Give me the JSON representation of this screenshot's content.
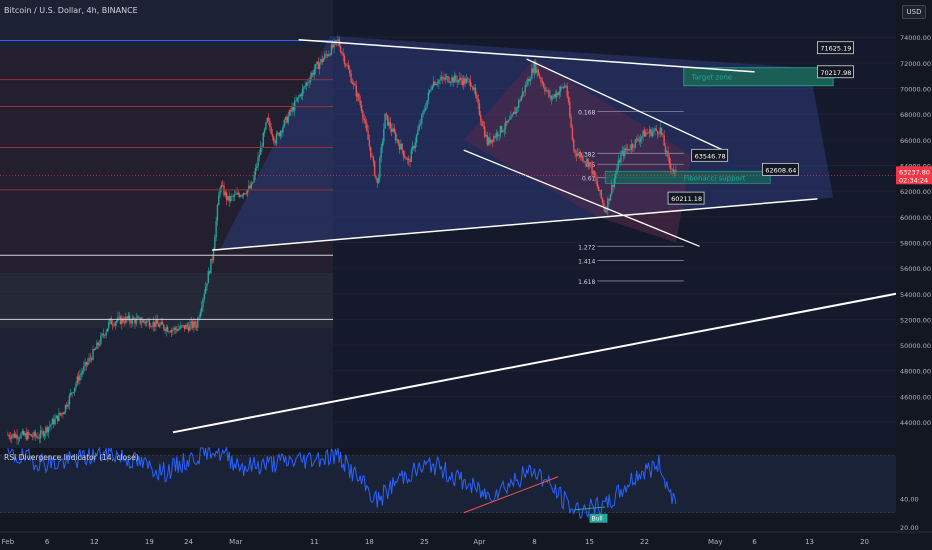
{
  "header": {
    "title": "Bitcoin / U.S. Dollar, 4h, BINANCE",
    "currency": "USD"
  },
  "colors": {
    "background": "#131722",
    "up": "#26a69a",
    "down": "#ef5350",
    "rsi": "#2962ff",
    "accent_white": "#ffffff",
    "price_label": "#f23645"
  },
  "chart_data": {
    "type": "candlestick",
    "price_axis": {
      "ticks": [
        44000,
        46000,
        48000,
        50000,
        52000,
        54000,
        56000,
        58000,
        60000,
        62000,
        64000,
        66000,
        68000,
        70000,
        72000,
        74000
      ],
      "tick_labels": [
        "44000.00",
        "46000.00",
        "48000.00",
        "50000.00",
        "52000.00",
        "54000.00",
        "56000.00",
        "58000.00",
        "60000.00",
        "62000.00",
        "64000.00",
        "66000.00",
        "68000.00",
        "70000.00",
        "72000.00",
        "74000.00"
      ],
      "range": [
        42600,
        75500
      ]
    },
    "time_axis": {
      "labels": [
        "Feb",
        "6",
        "12",
        "19",
        "24",
        "Mar",
        "11",
        "18",
        "25",
        "Apr",
        "8",
        "15",
        "22",
        "May",
        "6",
        "13",
        "20"
      ]
    },
    "current_price": {
      "value": "63237.80",
      "countdown": "02:34:24"
    },
    "ohlc_anchors": [
      [
        "2024-02-01",
        43000
      ],
      [
        "2024-02-05",
        42900
      ],
      [
        "2024-02-08",
        44800
      ],
      [
        "2024-02-10",
        47500
      ],
      [
        "2024-02-12",
        49500
      ],
      [
        "2024-02-14",
        51800
      ],
      [
        "2024-02-16",
        52000
      ],
      [
        "2024-02-19",
        51800
      ],
      [
        "2024-02-22",
        51200
      ],
      [
        "2024-02-25",
        51600
      ],
      [
        "2024-02-27",
        56800
      ],
      [
        "2024-02-28",
        62500
      ],
      [
        "2024-02-29",
        61300
      ],
      [
        "2024-03-03",
        62300
      ],
      [
        "2024-03-05",
        67500
      ],
      [
        "2024-03-06",
        66000
      ],
      [
        "2024-03-08",
        68200
      ],
      [
        "2024-03-11",
        71500
      ],
      [
        "2024-03-14",
        73700
      ],
      [
        "2024-03-17",
        68500
      ],
      [
        "2024-03-19",
        62500
      ],
      [
        "2024-03-20",
        67800
      ],
      [
        "2024-03-23",
        64200
      ],
      [
        "2024-03-26",
        70500
      ],
      [
        "2024-03-28",
        70800
      ],
      [
        "2024-03-31",
        70500
      ],
      [
        "2024-04-02",
        65800
      ],
      [
        "2024-04-05",
        67500
      ],
      [
        "2024-04-08",
        71800
      ],
      [
        "2024-04-10",
        69200
      ],
      [
        "2024-04-12",
        70300
      ],
      [
        "2024-04-13",
        65200
      ],
      [
        "2024-04-15",
        64200
      ],
      [
        "2024-04-17",
        60500
      ],
      [
        "2024-04-19",
        64800
      ],
      [
        "2024-04-22",
        66500
      ],
      [
        "2024-04-24",
        66800
      ],
      [
        "2024-04-25",
        64400
      ],
      [
        "2024-04-26",
        63237.8
      ]
    ],
    "rsi": {
      "title": "RSI Divergence Indicator (14, close)",
      "tick_labels": [
        "40.00",
        "20.00"
      ],
      "ticks": [
        40,
        20
      ],
      "range": [
        18,
        75
      ],
      "bands": [
        30,
        70
      ],
      "anchors": [
        [
          "2024-02-01",
          70
        ],
        [
          "2024-02-07",
          64
        ],
        [
          "2024-02-14",
          72
        ],
        [
          "2024-02-21",
          58
        ],
        [
          "2024-02-27",
          75
        ],
        [
          "2024-03-02",
          62
        ],
        [
          "2024-03-08",
          66
        ],
        [
          "2024-03-14",
          70
        ],
        [
          "2024-03-19",
          38
        ],
        [
          "2024-03-22",
          55
        ],
        [
          "2024-03-26",
          64
        ],
        [
          "2024-04-02",
          42
        ],
        [
          "2024-04-08",
          60
        ],
        [
          "2024-04-13",
          32
        ],
        [
          "2024-04-17",
          34
        ],
        [
          "2024-04-21",
          56
        ],
        [
          "2024-04-24",
          64
        ],
        [
          "2024-04-25",
          46
        ],
        [
          "2024-04-26",
          40
        ]
      ],
      "label": "Bull"
    },
    "fib_levels": [
      {
        "label": "0.168",
        "value": 68200
      },
      {
        "label": "0.382",
        "value": 64950
      },
      {
        "label": "0.5",
        "value": 64100
      },
      {
        "label": "0.61",
        "value": 63050
      },
      {
        "label": "1.272",
        "value": 57700
      },
      {
        "label": "1.414",
        "value": 56600
      },
      {
        "label": "1.618",
        "value": 55000
      }
    ],
    "zones": {
      "target_label": "Target zone",
      "target_range": [
        70217.98,
        71625.19
      ],
      "support_label": "Fibonacci support",
      "support_range": [
        62608.64,
        63546.78
      ]
    },
    "price_callouts": [
      "71625.19",
      "70217.98",
      "63546.78",
      "62608.64",
      "60211.18"
    ],
    "horizontal_levels": [
      73750,
      70700,
      68600,
      65400,
      62100,
      57000,
      52000
    ]
  }
}
